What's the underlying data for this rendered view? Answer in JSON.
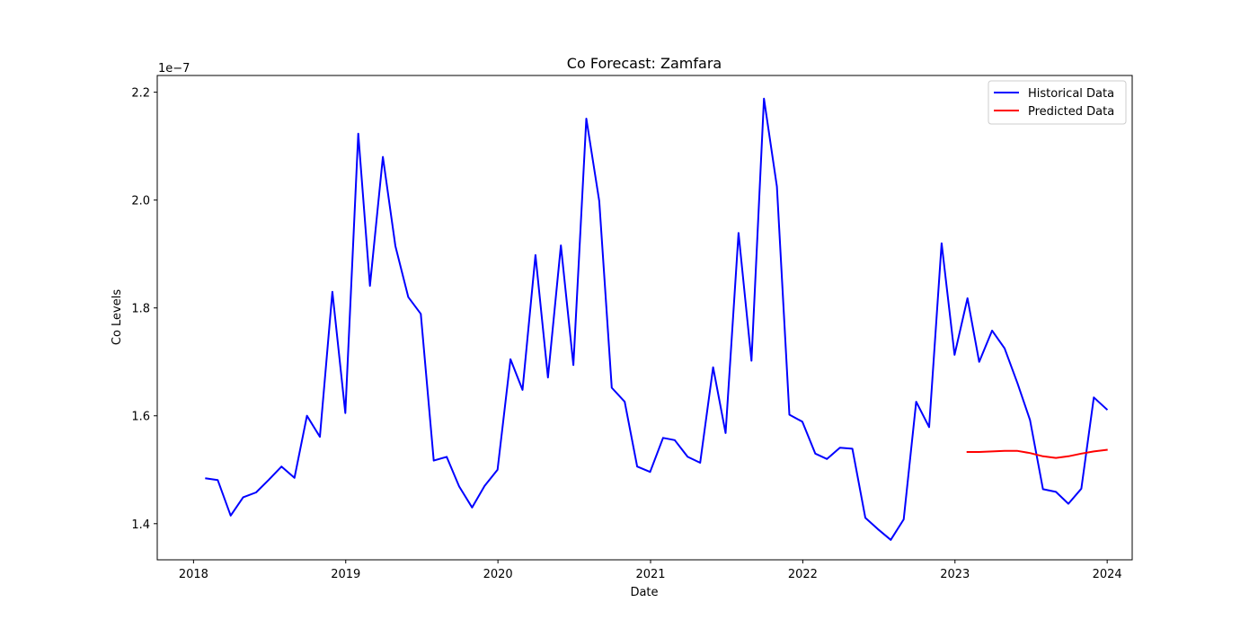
{
  "chart_data": {
    "type": "line",
    "title": "Co Forecast: Zamfara",
    "xlabel": "Date",
    "ylabel": "Co Levels",
    "y_offset_label": "1e−7",
    "x_ticks": [
      "2018",
      "2019",
      "2020",
      "2021",
      "2022",
      "2023",
      "2024"
    ],
    "y_ticks": [
      "1.4",
      "1.6",
      "1.8",
      "2.0",
      "2.2"
    ],
    "ylim": [
      1.333,
      2.231
    ],
    "xlim": [
      "2017-10-06",
      "2024-03-01"
    ],
    "legend_position": "top-right",
    "series": [
      {
        "name": "Historical Data",
        "color": "#0000ff",
        "x": [
          "2018-01-31",
          "2018-02-28",
          "2018-03-31",
          "2018-04-30",
          "2018-05-31",
          "2018-06-30",
          "2018-07-31",
          "2018-08-31",
          "2018-09-30",
          "2018-10-31",
          "2018-11-30",
          "2018-12-31",
          "2019-01-31",
          "2019-02-28",
          "2019-03-31",
          "2019-04-30",
          "2019-05-31",
          "2019-06-30",
          "2019-07-31",
          "2019-08-31",
          "2019-09-30",
          "2019-10-31",
          "2019-11-30",
          "2019-12-31",
          "2020-01-31",
          "2020-02-29",
          "2020-03-31",
          "2020-04-30",
          "2020-05-31",
          "2020-06-30",
          "2020-07-31",
          "2020-08-31",
          "2020-09-30",
          "2020-10-31",
          "2020-11-30",
          "2020-12-31",
          "2021-01-31",
          "2021-02-28",
          "2021-03-31",
          "2021-04-30",
          "2021-05-31",
          "2021-06-30",
          "2021-07-31",
          "2021-08-31",
          "2021-09-30",
          "2021-10-31",
          "2021-11-30",
          "2021-12-31",
          "2022-01-31",
          "2022-02-28",
          "2022-03-31",
          "2022-04-30",
          "2022-05-31",
          "2022-06-30",
          "2022-07-31",
          "2022-08-31",
          "2022-09-30",
          "2022-10-31",
          "2022-11-30",
          "2022-12-31",
          "2023-01-31",
          "2023-02-28",
          "2023-03-31",
          "2023-04-30",
          "2023-05-31",
          "2023-06-30",
          "2023-07-31",
          "2023-08-31",
          "2023-09-30",
          "2023-10-31",
          "2023-11-30",
          "2023-12-31"
        ],
        "values": [
          1.484,
          1.481,
          1.415,
          1.449,
          1.458,
          1.481,
          1.506,
          1.485,
          1.6,
          1.561,
          1.83,
          1.605,
          2.123,
          1.841,
          2.08,
          1.915,
          1.82,
          1.789,
          1.517,
          1.524,
          1.469,
          1.43,
          1.47,
          1.5,
          1.705,
          1.648,
          1.898,
          1.671,
          1.916,
          1.694,
          2.151,
          1.998,
          1.652,
          1.626,
          1.506,
          1.496,
          1.559,
          1.555,
          1.524,
          1.513,
          1.69,
          1.568,
          1.939,
          1.702,
          2.188,
          2.025,
          1.602,
          1.589,
          1.53,
          1.52,
          1.541,
          1.539,
          1.411,
          1.39,
          1.37,
          1.408,
          1.626,
          1.579,
          1.92,
          1.713,
          1.818,
          1.7,
          1.758,
          1.725,
          1.66,
          1.592,
          1.464,
          1.459,
          1.437,
          1.465,
          1.634,
          1.612
        ]
      },
      {
        "name": "Predicted Data",
        "color": "#ff0000",
        "x": [
          "2023-01-31",
          "2023-02-28",
          "2023-03-31",
          "2023-04-30",
          "2023-05-31",
          "2023-06-30",
          "2023-07-31",
          "2023-08-31",
          "2023-09-30",
          "2023-10-31",
          "2023-11-30",
          "2023-12-31"
        ],
        "values": [
          1.533,
          1.533,
          1.534,
          1.535,
          1.535,
          1.531,
          1.525,
          1.522,
          1.525,
          1.53,
          1.534,
          1.537
        ]
      }
    ]
  }
}
